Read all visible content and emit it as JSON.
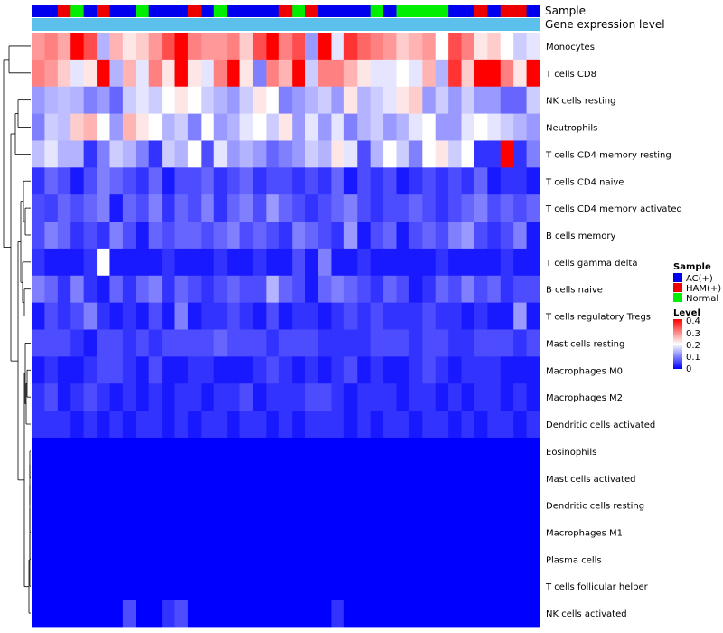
{
  "chart_data": {
    "type": "heatmap",
    "annotation_labels": {
      "sample": "Sample",
      "gene": "Gene expression level"
    },
    "rows": [
      "Monocytes",
      "T cells CD8",
      "NK cells resting",
      "Neutrophils",
      "T cells CD4 memory resting",
      "T cells CD4 naive",
      "T cells CD4 memory activated",
      "B cells memory",
      "T cells gamma delta",
      "B cells naive",
      "T cells regulatory  Tregs",
      "Mast cells resting",
      "Macrophages M0",
      "Macrophages M2",
      "Dendritic cells activated",
      "Eosinophils",
      "Mast cells activated",
      "Dendritic cells resting",
      "Macrophages M1",
      "Plasma cells",
      "T cells follicular helper",
      "NK cells activated"
    ],
    "sample_groups": [
      "AC",
      "AC",
      "HAM",
      "Normal",
      "AC",
      "HAM",
      "AC",
      "AC",
      "Normal",
      "AC",
      "AC",
      "AC",
      "HAM",
      "AC",
      "Normal",
      "AC",
      "AC",
      "AC",
      "AC",
      "HAM",
      "Normal",
      "HAM",
      "AC",
      "AC",
      "AC",
      "AC",
      "Normal",
      "AC",
      "Normal",
      "Normal",
      "Normal",
      "Normal",
      "AC",
      "AC",
      "HAM",
      "AC",
      "HAM",
      "HAM",
      "AC"
    ],
    "values": [
      [
        0.28,
        0.3,
        0.27,
        0.4,
        0.34,
        0.14,
        0.26,
        0.22,
        0.24,
        0.28,
        0.34,
        0.4,
        0.3,
        0.28,
        0.28,
        0.3,
        0.24,
        0.34,
        0.4,
        0.3,
        0.34,
        0.12,
        0.4,
        0.18,
        0.36,
        0.32,
        0.3,
        0.28,
        0.24,
        0.26,
        0.28,
        0.2,
        0.34,
        0.3,
        0.22,
        0.24,
        0.2,
        0.16,
        0.18
      ],
      [
        0.3,
        0.28,
        0.24,
        0.18,
        0.22,
        0.4,
        0.14,
        0.26,
        0.18,
        0.3,
        0.22,
        0.4,
        0.22,
        0.18,
        0.3,
        0.4,
        0.22,
        0.1,
        0.3,
        0.26,
        0.4,
        0.16,
        0.3,
        0.3,
        0.26,
        0.22,
        0.18,
        0.18,
        0.2,
        0.18,
        0.26,
        0.14,
        0.36,
        0.24,
        0.4,
        0.4,
        0.3,
        0.22,
        0.4
      ],
      [
        0.12,
        0.14,
        0.15,
        0.14,
        0.1,
        0.12,
        0.08,
        0.16,
        0.18,
        0.16,
        0.2,
        0.22,
        0.2,
        0.16,
        0.14,
        0.12,
        0.16,
        0.22,
        0.2,
        0.1,
        0.12,
        0.14,
        0.16,
        0.12,
        0.22,
        0.14,
        0.16,
        0.18,
        0.22,
        0.24,
        0.12,
        0.16,
        0.12,
        0.16,
        0.12,
        0.12,
        0.08,
        0.08,
        0.16
      ],
      [
        0.1,
        0.16,
        0.15,
        0.24,
        0.26,
        0.2,
        0.12,
        0.26,
        0.22,
        0.2,
        0.14,
        0.16,
        0.1,
        0.2,
        0.12,
        0.14,
        0.18,
        0.2,
        0.16,
        0.22,
        0.12,
        0.18,
        0.12,
        0.18,
        0.1,
        0.14,
        0.16,
        0.12,
        0.14,
        0.18,
        0.2,
        0.12,
        0.12,
        0.18,
        0.2,
        0.18,
        0.16,
        0.14,
        0.12
      ],
      [
        0.15,
        0.18,
        0.14,
        0.14,
        0.04,
        0.1,
        0.16,
        0.14,
        0.1,
        0.04,
        0.16,
        0.14,
        0.2,
        0.06,
        0.18,
        0.12,
        0.14,
        0.12,
        0.08,
        0.1,
        0.12,
        0.16,
        0.14,
        0.22,
        0.18,
        0.06,
        0.14,
        0.2,
        0.16,
        0.1,
        0.2,
        0.22,
        0.16,
        0.2,
        0.04,
        0.04,
        0.4,
        0.04,
        0.1
      ],
      [
        0.04,
        0.08,
        0.06,
        0.02,
        0.06,
        0.1,
        0.08,
        0.06,
        0.04,
        0.08,
        0.02,
        0.06,
        0.06,
        0.08,
        0.04,
        0.06,
        0.08,
        0.04,
        0.06,
        0.06,
        0.04,
        0.06,
        0.04,
        0.08,
        0.02,
        0.06,
        0.04,
        0.06,
        0.02,
        0.04,
        0.06,
        0.04,
        0.06,
        0.04,
        0.08,
        0.02,
        0.04,
        0.04,
        0.02
      ],
      [
        0.06,
        0.05,
        0.08,
        0.06,
        0.08,
        0.1,
        0.02,
        0.08,
        0.06,
        0.1,
        0.04,
        0.08,
        0.06,
        0.1,
        0.04,
        0.08,
        0.1,
        0.06,
        0.12,
        0.08,
        0.06,
        0.04,
        0.06,
        0.08,
        0.1,
        0.06,
        0.04,
        0.06,
        0.06,
        0.08,
        0.06,
        0.04,
        0.06,
        0.08,
        0.1,
        0.06,
        0.08,
        0.06,
        0.08
      ],
      [
        0.06,
        0.1,
        0.08,
        0.04,
        0.06,
        0.04,
        0.1,
        0.06,
        0.02,
        0.08,
        0.06,
        0.08,
        0.08,
        0.06,
        0.08,
        0.1,
        0.06,
        0.08,
        0.06,
        0.04,
        0.1,
        0.08,
        0.06,
        0.04,
        0.12,
        0.02,
        0.06,
        0.08,
        0.02,
        0.06,
        0.08,
        0.06,
        0.1,
        0.12,
        0.06,
        0.04,
        0.06,
        0.1,
        0.02
      ],
      [
        0.04,
        0.02,
        0.02,
        0.02,
        0.04,
        0.2,
        0.02,
        0.02,
        0.02,
        0.02,
        0.04,
        0.02,
        0.02,
        0.02,
        0.04,
        0.02,
        0.02,
        0.04,
        0.02,
        0.02,
        0.06,
        0.02,
        0.1,
        0.02,
        0.02,
        0.04,
        0.02,
        0.02,
        0.02,
        0.02,
        0.02,
        0.04,
        0.02,
        0.02,
        0.02,
        0.02,
        0.04,
        0.02,
        0.02
      ],
      [
        0.1,
        0.08,
        0.04,
        0.1,
        0.04,
        0.02,
        0.08,
        0.04,
        0.08,
        0.1,
        0.04,
        0.08,
        0.06,
        0.04,
        0.06,
        0.08,
        0.06,
        0.06,
        0.14,
        0.08,
        0.06,
        0.02,
        0.08,
        0.1,
        0.08,
        0.06,
        0.04,
        0.08,
        0.06,
        0.02,
        0.04,
        0.08,
        0.06,
        0.1,
        0.06,
        0.08,
        0.04,
        0.06,
        0.06
      ],
      [
        0.02,
        0.06,
        0.04,
        0.06,
        0.1,
        0.04,
        0.02,
        0.04,
        0.02,
        0.06,
        0.02,
        0.1,
        0.02,
        0.04,
        0.04,
        0.06,
        0.04,
        0.02,
        0.06,
        0.02,
        0.04,
        0.04,
        0.02,
        0.04,
        0.06,
        0.04,
        0.06,
        0.04,
        0.04,
        0.04,
        0.06,
        0.04,
        0.04,
        0.02,
        0.04,
        0.02,
        0.02,
        0.12,
        0.02
      ],
      [
        0.06,
        0.06,
        0.06,
        0.04,
        0.02,
        0.06,
        0.06,
        0.04,
        0.06,
        0.04,
        0.06,
        0.06,
        0.06,
        0.06,
        0.08,
        0.06,
        0.06,
        0.06,
        0.04,
        0.06,
        0.06,
        0.06,
        0.04,
        0.04,
        0.04,
        0.04,
        0.06,
        0.06,
        0.06,
        0.04,
        0.06,
        0.06,
        0.04,
        0.04,
        0.06,
        0.06,
        0.06,
        0.04,
        0.06
      ],
      [
        0.02,
        0.04,
        0.02,
        0.02,
        0.04,
        0.06,
        0.06,
        0.04,
        0.02,
        0.06,
        0.02,
        0.02,
        0.04,
        0.04,
        0.02,
        0.02,
        0.02,
        0.04,
        0.06,
        0.04,
        0.02,
        0.04,
        0.02,
        0.04,
        0.06,
        0.02,
        0.04,
        0.02,
        0.02,
        0.04,
        0.06,
        0.04,
        0.02,
        0.04,
        0.04,
        0.04,
        0.02,
        0.02,
        0.02
      ],
      [
        0.04,
        0.06,
        0.02,
        0.04,
        0.06,
        0.04,
        0.02,
        0.04,
        0.02,
        0.04,
        0.02,
        0.04,
        0.04,
        0.02,
        0.04,
        0.04,
        0.06,
        0.02,
        0.04,
        0.04,
        0.04,
        0.06,
        0.06,
        0.04,
        0.02,
        0.04,
        0.04,
        0.04,
        0.02,
        0.04,
        0.04,
        0.02,
        0.04,
        0.02,
        0.04,
        0.04,
        0.02,
        0.04,
        0.02
      ],
      [
        0.04,
        0.04,
        0.04,
        0.02,
        0.04,
        0.02,
        0.04,
        0.02,
        0.04,
        0.04,
        0.02,
        0.04,
        0.02,
        0.04,
        0.04,
        0.02,
        0.04,
        0.04,
        0.02,
        0.04,
        0.02,
        0.04,
        0.04,
        0.04,
        0.02,
        0.04,
        0.02,
        0.04,
        0.04,
        0.02,
        0.04,
        0.04,
        0.02,
        0.04,
        0.02,
        0.04,
        0.04,
        0.02,
        0.04
      ],
      [
        0,
        0,
        0,
        0,
        0,
        0,
        0,
        0,
        0,
        0,
        0,
        0,
        0,
        0,
        0,
        0,
        0,
        0,
        0,
        0,
        0,
        0,
        0,
        0,
        0,
        0,
        0,
        0,
        0,
        0,
        0,
        0,
        0,
        0,
        0,
        0,
        0,
        0,
        0
      ],
      [
        0,
        0,
        0,
        0,
        0,
        0,
        0,
        0,
        0,
        0,
        0,
        0,
        0,
        0,
        0,
        0,
        0,
        0,
        0,
        0,
        0,
        0,
        0,
        0,
        0,
        0,
        0,
        0,
        0,
        0,
        0,
        0,
        0,
        0,
        0,
        0,
        0,
        0,
        0
      ],
      [
        0,
        0,
        0,
        0,
        0,
        0,
        0,
        0,
        0,
        0,
        0,
        0,
        0,
        0,
        0,
        0,
        0,
        0,
        0,
        0,
        0,
        0,
        0,
        0,
        0,
        0,
        0,
        0,
        0,
        0,
        0,
        0,
        0,
        0,
        0,
        0,
        0,
        0,
        0
      ],
      [
        0,
        0,
        0,
        0,
        0,
        0,
        0,
        0,
        0,
        0,
        0,
        0,
        0,
        0,
        0,
        0,
        0,
        0,
        0,
        0,
        0,
        0,
        0,
        0,
        0,
        0,
        0,
        0,
        0,
        0,
        0,
        0,
        0,
        0,
        0,
        0,
        0,
        0,
        0
      ],
      [
        0,
        0,
        0,
        0,
        0,
        0,
        0,
        0,
        0,
        0,
        0,
        0,
        0,
        0,
        0,
        0,
        0,
        0,
        0,
        0,
        0,
        0,
        0,
        0,
        0,
        0,
        0,
        0,
        0,
        0,
        0,
        0,
        0,
        0,
        0,
        0,
        0,
        0,
        0
      ],
      [
        0,
        0,
        0,
        0,
        0,
        0,
        0,
        0,
        0,
        0,
        0,
        0,
        0,
        0,
        0,
        0,
        0,
        0,
        0,
        0,
        0,
        0,
        0,
        0,
        0,
        0,
        0,
        0,
        0,
        0,
        0,
        0,
        0,
        0,
        0,
        0,
        0,
        0,
        0
      ],
      [
        0,
        0,
        0,
        0,
        0,
        0,
        0,
        0.06,
        0,
        0,
        0.04,
        0.06,
        0,
        0,
        0,
        0,
        0,
        0,
        0,
        0,
        0,
        0,
        0,
        0.04,
        0,
        0,
        0,
        0,
        0,
        0,
        0,
        0,
        0,
        0,
        0,
        0,
        0,
        0,
        0
      ]
    ],
    "colorbar": {
      "title": "Level",
      "ticks": [
        "0.4",
        "0.3",
        "0.2",
        "0.1",
        "0"
      ],
      "range": [
        0,
        0.4
      ]
    },
    "legend": {
      "title": "Sample",
      "items": [
        {
          "key": "AC",
          "label": "AC(+)",
          "color": "#0000ee"
        },
        {
          "key": "HAM",
          "label": "HAM(+)",
          "color": "#ee0000"
        },
        {
          "key": "Normal",
          "label": "Normal",
          "color": "#00ee00"
        }
      ]
    },
    "colors": {
      "low": "#0000ff",
      "mid": "#ffffff",
      "high": "#ff0000",
      "gene_bar": "#5bc0eb"
    }
  }
}
